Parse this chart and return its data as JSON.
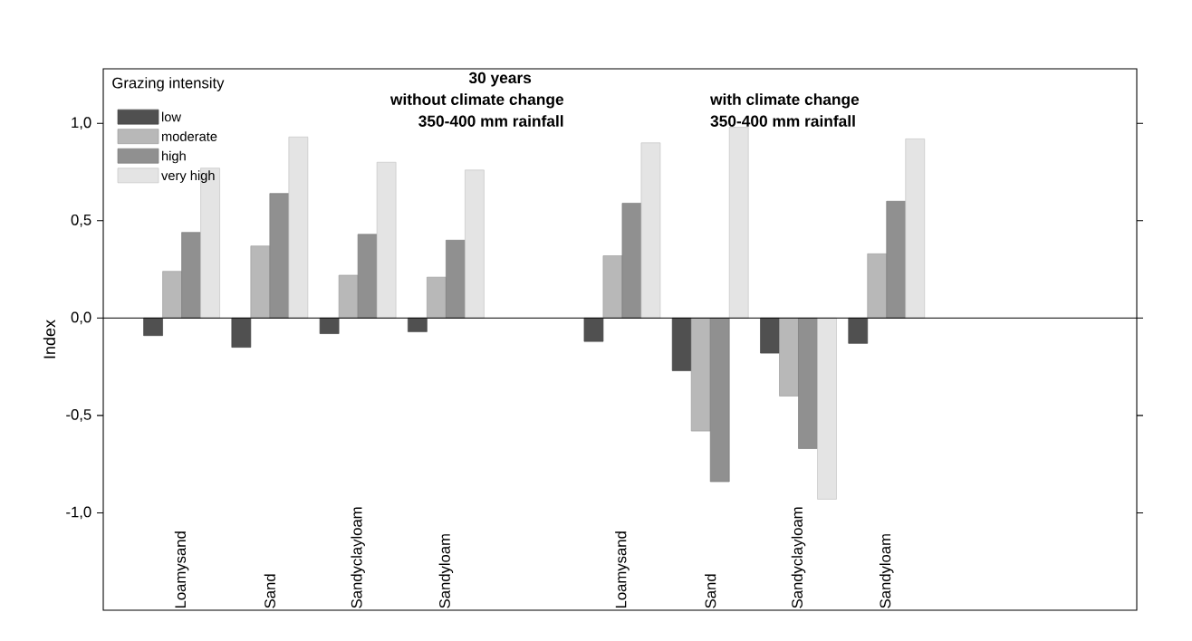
{
  "chart_data": {
    "type": "bar",
    "title": "30 years",
    "ylabel": "Index",
    "legend_title": "Grazing intensity",
    "legend": "top left",
    "annotations": [
      "without climate change",
      "350-400 mm rainfall",
      "with climate change",
      "350-400 mm rainfall"
    ],
    "categories": [
      "Loamysand",
      "Sand",
      "Sandyclayloam",
      "Sandyloam",
      null,
      "Loamysand",
      "Sand",
      "Sandyclayloam",
      "Sandyloam"
    ],
    "series": [
      {
        "name": "low",
        "color": "#505050",
        "values": [
          -0.09,
          -0.15,
          -0.08,
          -0.07,
          null,
          -0.12,
          -0.27,
          -0.18,
          -0.13
        ]
      },
      {
        "name": "moderate",
        "color": "#b8b8b8",
        "values": [
          0.24,
          0.37,
          0.22,
          0.21,
          null,
          0.32,
          -0.58,
          -0.4,
          0.33
        ]
      },
      {
        "name": "high",
        "color": "#909090",
        "values": [
          0.44,
          0.64,
          0.43,
          0.4,
          null,
          0.59,
          -0.84,
          -0.67,
          0.6
        ]
      },
      {
        "name": "very high",
        "color": "#e4e4e4",
        "values": [
          0.77,
          0.93,
          0.8,
          0.76,
          null,
          0.9,
          0.98,
          -0.93,
          0.92
        ]
      }
    ],
    "ylim": [
      -1.5,
      1.28
    ],
    "yticks": [
      {
        "value": -1.0,
        "label": "-1,0"
      },
      {
        "value": -0.5,
        "label": "-0,5"
      },
      {
        "value": 0.0,
        "label": "0,0"
      },
      {
        "value": 0.5,
        "label": "0,5"
      },
      {
        "value": 1.0,
        "label": "1,0"
      }
    ]
  }
}
